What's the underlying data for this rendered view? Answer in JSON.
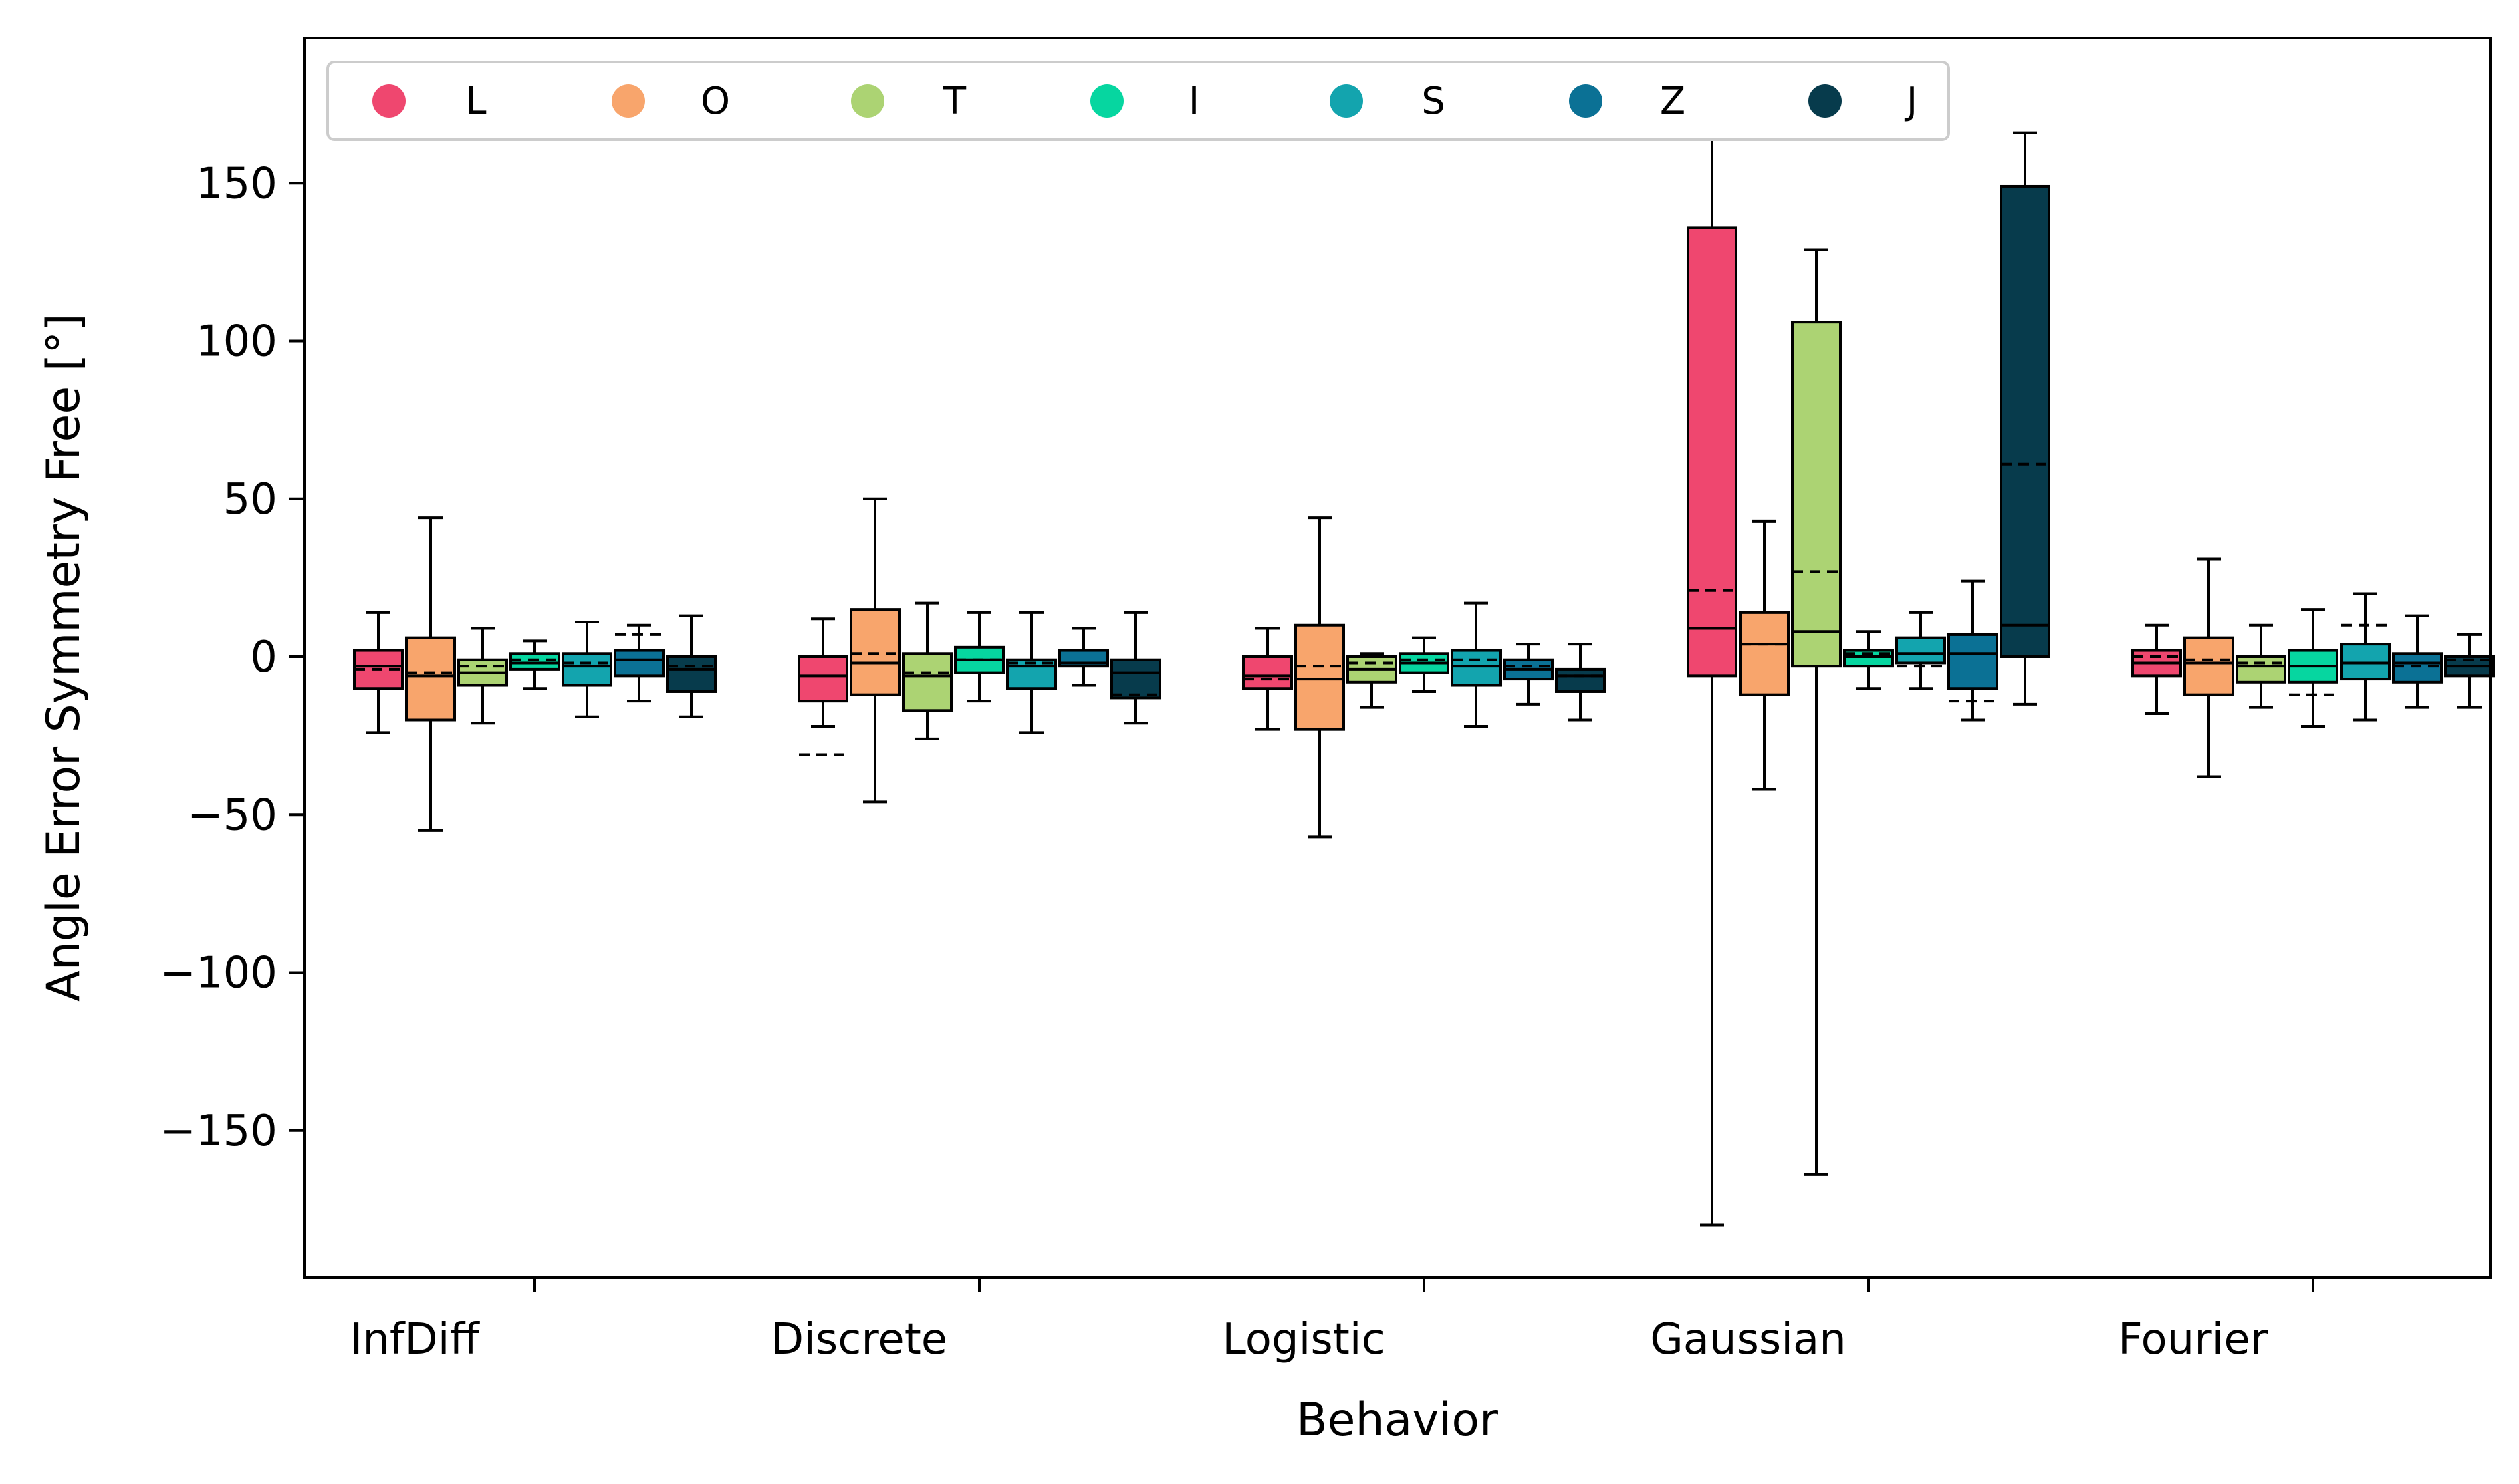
{
  "chart_data": {
    "type": "box",
    "xlabel": "Behavior",
    "ylabel": "Angle Error Symmetry Free [°]",
    "ylim": [
      -197,
      196
    ],
    "yticks": [
      150,
      100,
      50,
      0,
      -50,
      -100,
      -150
    ],
    "ytick_labels": [
      "150",
      "100",
      "50",
      "0",
      "−50",
      "−100",
      "−150"
    ],
    "categories": [
      "InfDiff",
      "Discrete",
      "Logistic",
      "Gaussian",
      "Fourier"
    ],
    "grid": false,
    "legend_position": "top-left",
    "median_style": "solid",
    "mean_style": "dashed",
    "series": [
      {
        "name": "L",
        "color": "#ef476f",
        "boxes": [
          {
            "whislo": -24,
            "q1": -10,
            "med": -3,
            "q3": 2,
            "whishi": 14,
            "mean": -4
          },
          {
            "whislo": -22,
            "q1": -14,
            "med": -6,
            "q3": 0,
            "whishi": 12,
            "mean": -31
          },
          {
            "whislo": -23,
            "q1": -10,
            "med": -6,
            "q3": 0,
            "whishi": 9,
            "mean": -7
          },
          {
            "whislo": -180,
            "q1": -6,
            "med": 9,
            "q3": 136,
            "whishi": 178,
            "mean": 21
          },
          {
            "whislo": -18,
            "q1": -6,
            "med": -2,
            "q3": 2,
            "whishi": 10,
            "mean": 0
          }
        ]
      },
      {
        "name": "O",
        "color": "#f8a56c",
        "boxes": [
          {
            "whislo": -55,
            "q1": -20,
            "med": -6,
            "q3": 6,
            "whishi": 44,
            "mean": -5
          },
          {
            "whislo": -46,
            "q1": -12,
            "med": -2,
            "q3": 15,
            "whishi": 50,
            "mean": 1
          },
          {
            "whislo": -57,
            "q1": -23,
            "med": -7,
            "q3": 10,
            "whishi": 44,
            "mean": -3
          },
          {
            "whislo": -42,
            "q1": -12,
            "med": 4,
            "q3": 14,
            "whishi": 43,
            "mean": 4
          },
          {
            "whislo": -38,
            "q1": -12,
            "med": -2,
            "q3": 6,
            "whishi": 31,
            "mean": -1
          }
        ]
      },
      {
        "name": "T",
        "color": "#acd373",
        "boxes": [
          {
            "whislo": -21,
            "q1": -9,
            "med": -5,
            "q3": -1,
            "whishi": 9,
            "mean": -3
          },
          {
            "whislo": -26,
            "q1": -17,
            "med": -6,
            "q3": 1,
            "whishi": 17,
            "mean": -5
          },
          {
            "whislo": -16,
            "q1": -8,
            "med": -4,
            "q3": 0,
            "whishi": 1,
            "mean": -2
          },
          {
            "whislo": -164,
            "q1": -3,
            "med": 8,
            "q3": 106,
            "whishi": 129,
            "mean": 27
          },
          {
            "whislo": -16,
            "q1": -8,
            "med": -3,
            "q3": 0,
            "whishi": 10,
            "mean": -2
          }
        ]
      },
      {
        "name": "I",
        "color": "#06d6a0",
        "boxes": [
          {
            "whislo": -10,
            "q1": -4,
            "med": -2,
            "q3": 1,
            "whishi": 5,
            "mean": -1
          },
          {
            "whislo": -14,
            "q1": -5,
            "med": -1,
            "q3": 3,
            "whishi": 14,
            "mean": -1
          },
          {
            "whislo": -11,
            "q1": -5,
            "med": -2,
            "q3": 1,
            "whishi": 6,
            "mean": -1
          },
          {
            "whislo": -10,
            "q1": -3,
            "med": 0,
            "q3": 2,
            "whishi": 8,
            "mean": 1
          },
          {
            "whislo": -22,
            "q1": -8,
            "med": -3,
            "q3": 2,
            "whishi": 15,
            "mean": -12
          }
        ]
      },
      {
        "name": "S",
        "color": "#13a4ae",
        "boxes": [
          {
            "whislo": -19,
            "q1": -9,
            "med": -3,
            "q3": 1,
            "whishi": 11,
            "mean": -2
          },
          {
            "whislo": -24,
            "q1": -10,
            "med": -3,
            "q3": -1,
            "whishi": 14,
            "mean": -2
          },
          {
            "whislo": -22,
            "q1": -9,
            "med": -3,
            "q3": 2,
            "whishi": 17,
            "mean": -1
          },
          {
            "whislo": -10,
            "q1": -2,
            "med": 1,
            "q3": 6,
            "whishi": 14,
            "mean": -3
          },
          {
            "whislo": -20,
            "q1": -7,
            "med": -2,
            "q3": 4,
            "whishi": 20,
            "mean": 10
          }
        ]
      },
      {
        "name": "Z",
        "color": "#0b7195",
        "boxes": [
          {
            "whislo": -14,
            "q1": -6,
            "med": -1,
            "q3": 2,
            "whishi": 10,
            "mean": 7
          },
          {
            "whislo": -9,
            "q1": -3,
            "med": -2,
            "q3": 2,
            "whishi": 9,
            "mean": -2
          },
          {
            "whislo": -15,
            "q1": -7,
            "med": -4,
            "q3": -1,
            "whishi": 4,
            "mean": -3
          },
          {
            "whislo": -20,
            "q1": -10,
            "med": 1,
            "q3": 7,
            "whishi": 24,
            "mean": -14
          },
          {
            "whislo": -16,
            "q1": -8,
            "med": -2,
            "q3": 1,
            "whishi": 13,
            "mean": -3
          }
        ]
      },
      {
        "name": "J",
        "color": "#073b4c",
        "boxes": [
          {
            "whislo": -19,
            "q1": -11,
            "med": -4,
            "q3": 0,
            "whishi": 13,
            "mean": -3
          },
          {
            "whislo": -21,
            "q1": -13,
            "med": -5,
            "q3": -1,
            "whishi": 14,
            "mean": -12
          },
          {
            "whislo": -20,
            "q1": -11,
            "med": -6,
            "q3": -4,
            "whishi": 4,
            "mean": -6
          },
          {
            "whislo": -15,
            "q1": 0,
            "med": 10,
            "q3": 149,
            "whishi": 166,
            "mean": 61
          },
          {
            "whislo": -16,
            "q1": -6,
            "med": -3,
            "q3": 0,
            "whishi": 7,
            "mean": -1
          }
        ]
      }
    ]
  }
}
